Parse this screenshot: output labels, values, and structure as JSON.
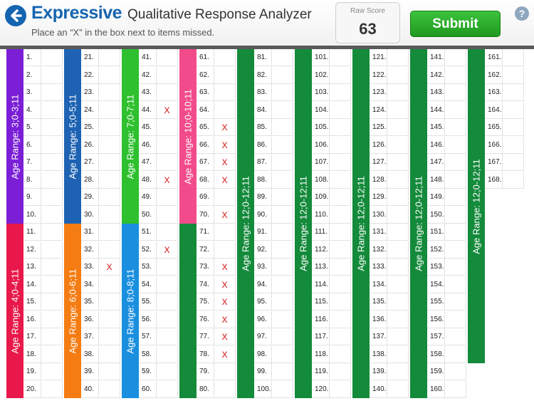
{
  "header": {
    "brand": "Expressive",
    "title": "Qualitative Response Analyzer",
    "instruction": "Place an “X” in the box next to items missed.",
    "raw_score_label": "Raw Score",
    "raw_score_value": "63",
    "submit_label": "Submit",
    "help_label": "?"
  },
  "grid": {
    "first_item": 1,
    "last_item": 168,
    "rows_per_column": 20,
    "mark_symbol": "X",
    "marked_items": [
      33,
      44,
      48,
      52,
      65,
      66,
      67,
      68,
      70,
      73,
      74,
      75,
      76,
      77,
      78
    ],
    "age_bands": [
      {
        "label": "Age Range: 3;0-3;11",
        "col": 0,
        "from_row": 1,
        "to_row": 10,
        "color": "#7b1fd6"
      },
      {
        "label": "Age Range: 4;0-4;11",
        "col": 0,
        "from_row": 11,
        "to_row": 20,
        "color": "#e8194a"
      },
      {
        "label": "Age Range: 5;0-5;11",
        "col": 1,
        "from_row": 1,
        "to_row": 10,
        "color": "#1e63b3"
      },
      {
        "label": "Age Range: 6;0-6;11",
        "col": 1,
        "from_row": 11,
        "to_row": 20,
        "color": "#f57c12"
      },
      {
        "label": "Age Range: 7;0-7;11",
        "col": 2,
        "from_row": 1,
        "to_row": 10,
        "color": "#2ec02e"
      },
      {
        "label": "Age Range: 8;0-8;11",
        "col": 2,
        "from_row": 11,
        "to_row": 20,
        "color": "#1a8fe0"
      },
      {
        "label": "Age Range: 10;0-10;11",
        "col": 3,
        "from_row": 1,
        "to_row": 10,
        "color": "#f24b8c"
      },
      {
        "label": "",
        "col": 3,
        "from_row": 11,
        "to_row": 20,
        "color": "#148a3b"
      },
      {
        "label": "Age Range: 12;0-12;11",
        "col": 4,
        "from_row": 1,
        "to_row": 20,
        "color": "#148a3b"
      },
      {
        "label": "Age Range: 12;0-12;11",
        "col": 5,
        "from_row": 1,
        "to_row": 20,
        "color": "#148a3b"
      },
      {
        "label": "Age Range: 12;0-12;11",
        "col": 6,
        "from_row": 1,
        "to_row": 20,
        "color": "#148a3b"
      },
      {
        "label": "Age Range: 12;0-12;11",
        "col": 7,
        "from_row": 1,
        "to_row": 20,
        "color": "#148a3b"
      },
      {
        "label": "Age Range: 12;0-12;11",
        "col": 8,
        "from_row": 1,
        "to_row": 18,
        "color": "#148a3b"
      }
    ]
  }
}
